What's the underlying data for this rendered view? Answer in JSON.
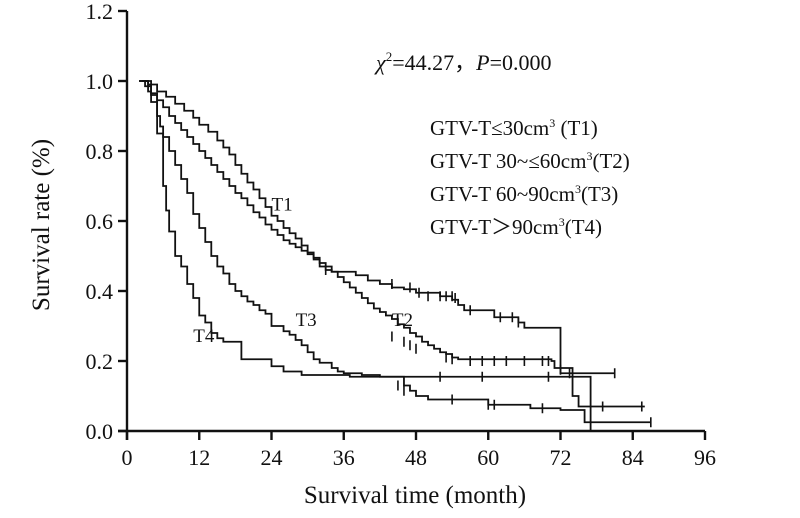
{
  "chart_data": {
    "type": "line",
    "subtype": "kaplan-meier-step",
    "title": "",
    "xlabel": "Survival time (month)",
    "ylabel": "Survival rate (%)",
    "xlim": [
      0,
      96
    ],
    "ylim": [
      0,
      1.2
    ],
    "xticks": [
      0,
      12,
      24,
      36,
      48,
      60,
      72,
      84,
      96
    ],
    "xtick_labels": [
      "0",
      "12",
      "24",
      "36",
      "48",
      "60",
      "72",
      "84",
      "96"
    ],
    "yticks": [
      0,
      0.2,
      0.4,
      0.6,
      0.8,
      1.0,
      1.2
    ],
    "ytick_labels": [
      "0.0",
      "0.2",
      "0.4",
      "0.6",
      "0.8",
      "1.0",
      "1.2"
    ],
    "grid": false,
    "annotation": {
      "chi_symbol": "χ",
      "chi_sup": "2",
      "chi_value": "=44.27，",
      "p_symbol": "P",
      "p_value": "=0.000"
    },
    "legend": {
      "placement": "top-right",
      "entries": [
        {
          "prefix": "GTV-T≤30cm",
          "sup": "3",
          "suffix": " (T1)"
        },
        {
          "prefix": "GTV-T 30~≤60cm",
          "sup": "3",
          "suffix": "(T2)"
        },
        {
          "prefix": "GTV-T 60~90cm",
          "sup": "3",
          "suffix": "(T3)"
        },
        {
          "prefix": "GTV-T＞90cm",
          "sup": "3",
          "suffix": "(T4)"
        }
      ]
    },
    "series": [
      {
        "name": "T1",
        "label": "T1",
        "label_at": [
          24,
          0.63
        ],
        "steps": [
          [
            2,
            1.0
          ],
          [
            3.5,
            0.99
          ],
          [
            5,
            0.97
          ],
          [
            6.5,
            0.955
          ],
          [
            8,
            0.935
          ],
          [
            9.5,
            0.915
          ],
          [
            11,
            0.895
          ],
          [
            12,
            0.875
          ],
          [
            13.5,
            0.855
          ],
          [
            15,
            0.83
          ],
          [
            16,
            0.81
          ],
          [
            17,
            0.79
          ],
          [
            18,
            0.76
          ],
          [
            19,
            0.735
          ],
          [
            20,
            0.71
          ],
          [
            21,
            0.69
          ],
          [
            22,
            0.665
          ],
          [
            23,
            0.64
          ],
          [
            24,
            0.615
          ],
          [
            25,
            0.6
          ],
          [
            26,
            0.58
          ],
          [
            27,
            0.565
          ],
          [
            28,
            0.55
          ],
          [
            29,
            0.53
          ],
          [
            30,
            0.51
          ],
          [
            31,
            0.49
          ],
          [
            32,
            0.47
          ],
          [
            33,
            0.46
          ],
          [
            34,
            0.455
          ],
          [
            38,
            0.445
          ],
          [
            40,
            0.43
          ],
          [
            42,
            0.42
          ],
          [
            44,
            0.41
          ],
          [
            46,
            0.405
          ],
          [
            48,
            0.395
          ],
          [
            52,
            0.385
          ],
          [
            54,
            0.375
          ],
          [
            55,
            0.36
          ],
          [
            56,
            0.345
          ],
          [
            60,
            0.345
          ],
          [
            61,
            0.325
          ],
          [
            65,
            0.31
          ],
          [
            66,
            0.295
          ],
          [
            72,
            0.165
          ],
          [
            81,
            0.165
          ]
        ],
        "censored": [
          [
            44,
            0.42
          ],
          [
            47,
            0.41
          ],
          [
            48.5,
            0.395
          ],
          [
            50,
            0.385
          ],
          [
            52,
            0.385
          ],
          [
            53,
            0.385
          ],
          [
            54,
            0.385
          ],
          [
            54.5,
            0.38
          ],
          [
            57,
            0.345
          ],
          [
            62,
            0.325
          ],
          [
            64,
            0.325
          ],
          [
            65,
            0.31
          ],
          [
            73.5,
            0.165
          ],
          [
            81,
            0.165
          ]
        ]
      },
      {
        "name": "T2",
        "label": "T2",
        "label_at": [
          44,
          0.3
        ],
        "steps": [
          [
            2,
            1.0
          ],
          [
            3,
            0.985
          ],
          [
            4,
            0.965
          ],
          [
            5,
            0.945
          ],
          [
            6,
            0.925
          ],
          [
            7,
            0.9
          ],
          [
            8,
            0.88
          ],
          [
            9,
            0.86
          ],
          [
            10,
            0.84
          ],
          [
            11,
            0.82
          ],
          [
            12,
            0.8
          ],
          [
            13,
            0.78
          ],
          [
            14,
            0.76
          ],
          [
            15,
            0.74
          ],
          [
            16,
            0.72
          ],
          [
            17,
            0.7
          ],
          [
            18,
            0.68
          ],
          [
            19,
            0.665
          ],
          [
            20,
            0.645
          ],
          [
            21,
            0.625
          ],
          [
            22,
            0.61
          ],
          [
            23,
            0.59
          ],
          [
            24,
            0.575
          ],
          [
            25,
            0.56
          ],
          [
            26,
            0.545
          ],
          [
            27,
            0.535
          ],
          [
            28,
            0.525
          ],
          [
            29,
            0.515
          ],
          [
            30,
            0.505
          ],
          [
            31,
            0.495
          ],
          [
            32,
            0.48
          ],
          [
            33,
            0.47
          ],
          [
            34,
            0.455
          ],
          [
            35,
            0.44
          ],
          [
            36,
            0.425
          ],
          [
            37,
            0.41
          ],
          [
            38,
            0.395
          ],
          [
            39,
            0.38
          ],
          [
            40,
            0.365
          ],
          [
            41,
            0.35
          ],
          [
            42,
            0.34
          ],
          [
            43,
            0.33
          ],
          [
            44,
            0.32
          ],
          [
            45,
            0.305
          ],
          [
            46,
            0.295
          ],
          [
            47,
            0.28
          ],
          [
            48,
            0.27
          ],
          [
            49,
            0.255
          ],
          [
            50,
            0.245
          ],
          [
            51,
            0.235
          ],
          [
            52,
            0.225
          ],
          [
            53,
            0.22
          ],
          [
            54,
            0.21
          ],
          [
            55,
            0.205
          ],
          [
            70.5,
            0.2
          ],
          [
            71,
            0.18
          ],
          [
            73,
            0.18
          ],
          [
            74,
            0.1
          ],
          [
            75,
            0.07
          ],
          [
            86,
            0.07
          ]
        ],
        "censored": [
          [
            33,
            0.46
          ],
          [
            44,
            0.27
          ],
          [
            46,
            0.255
          ],
          [
            47,
            0.245
          ],
          [
            48,
            0.235
          ],
          [
            53,
            0.21
          ],
          [
            54,
            0.205
          ],
          [
            57,
            0.2
          ],
          [
            59,
            0.2
          ],
          [
            61,
            0.2
          ],
          [
            63,
            0.2
          ],
          [
            66,
            0.2
          ],
          [
            69,
            0.2
          ],
          [
            70,
            0.2
          ],
          [
            72,
            0.175
          ],
          [
            79,
            0.07
          ],
          [
            85.5,
            0.07
          ]
        ]
      },
      {
        "name": "T3",
        "label": "T3",
        "label_at": [
          28,
          0.3
        ],
        "steps": [
          [
            2.5,
            1.0
          ],
          [
            3.5,
            0.97
          ],
          [
            4,
            0.94
          ],
          [
            5,
            0.9
          ],
          [
            5.5,
            0.87
          ],
          [
            6,
            0.84
          ],
          [
            7,
            0.8
          ],
          [
            8,
            0.76
          ],
          [
            9,
            0.72
          ],
          [
            10,
            0.68
          ],
          [
            11,
            0.62
          ],
          [
            12,
            0.58
          ],
          [
            13,
            0.54
          ],
          [
            14,
            0.5
          ],
          [
            15,
            0.47
          ],
          [
            16,
            0.45
          ],
          [
            17,
            0.42
          ],
          [
            18,
            0.4
          ],
          [
            19,
            0.385
          ],
          [
            20,
            0.37
          ],
          [
            21,
            0.36
          ],
          [
            22,
            0.345
          ],
          [
            23,
            0.335
          ],
          [
            24,
            0.3
          ],
          [
            26,
            0.285
          ],
          [
            27,
            0.275
          ],
          [
            28,
            0.26
          ],
          [
            29,
            0.245
          ],
          [
            30,
            0.225
          ],
          [
            31,
            0.205
          ],
          [
            32,
            0.195
          ],
          [
            34,
            0.18
          ],
          [
            35,
            0.17
          ],
          [
            36,
            0.165
          ],
          [
            39,
            0.16
          ],
          [
            42,
            0.155
          ],
          [
            45,
            0.155
          ],
          [
            46,
            0.13
          ],
          [
            47,
            0.115
          ],
          [
            48,
            0.1
          ],
          [
            50,
            0.09
          ],
          [
            56,
            0.09
          ],
          [
            60,
            0.075
          ],
          [
            66,
            0.075
          ],
          [
            67,
            0.065
          ],
          [
            69,
            0.065
          ],
          [
            72,
            0.06
          ],
          [
            76,
            0.025
          ],
          [
            87,
            0.025
          ]
        ],
        "censored": [
          [
            45,
            0.13
          ],
          [
            46,
            0.115
          ],
          [
            54,
            0.09
          ],
          [
            60,
            0.075
          ],
          [
            61,
            0.075
          ],
          [
            69,
            0.065
          ],
          [
            87,
            0.025
          ]
        ]
      },
      {
        "name": "T4",
        "label": "T4",
        "label_at": [
          11,
          0.255
        ],
        "steps": [
          [
            3,
            1.0
          ],
          [
            4,
            0.96
          ],
          [
            5,
            0.85
          ],
          [
            6,
            0.7
          ],
          [
            6.5,
            0.63
          ],
          [
            7,
            0.57
          ],
          [
            8,
            0.5
          ],
          [
            9,
            0.47
          ],
          [
            10,
            0.42
          ],
          [
            11,
            0.38
          ],
          [
            12,
            0.33
          ],
          [
            13,
            0.31
          ],
          [
            14,
            0.28
          ],
          [
            15,
            0.265
          ],
          [
            16,
            0.255
          ],
          [
            18,
            0.255
          ],
          [
            19,
            0.205
          ],
          [
            23,
            0.205
          ],
          [
            24,
            0.185
          ],
          [
            25,
            0.185
          ],
          [
            26,
            0.17
          ],
          [
            28,
            0.17
          ],
          [
            29,
            0.16
          ],
          [
            36,
            0.16
          ],
          [
            37,
            0.155
          ],
          [
            75,
            0.155
          ],
          [
            77,
            0.0
          ]
        ],
        "censored": [
          [
            52,
            0.155
          ],
          [
            59,
            0.155
          ],
          [
            70,
            0.155
          ]
        ]
      }
    ]
  }
}
